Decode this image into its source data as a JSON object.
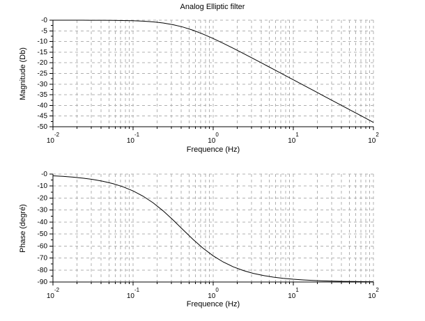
{
  "figure": {
    "title": "Analog Elliptic filter",
    "background": "#ffffff"
  },
  "style": {
    "grid_color": "#b0b0b0",
    "axis_color": "#000000",
    "text_color": "#000000",
    "curve_color": "#000000"
  },
  "chart_data": [
    {
      "id": "magnitude",
      "type": "line",
      "title": "Analog Elliptic filter",
      "xlabel": "Frequence (Hz)",
      "ylabel": "Magnitude (Db)",
      "xscale": "log",
      "xlim": [
        0.01,
        100
      ],
      "ylim": [
        -50,
        0
      ],
      "grid": true,
      "legend": null,
      "line_color": "#000000",
      "xtick_base": "10",
      "xtick_exponents": [
        "-2",
        "-1",
        "0",
        "1",
        "2"
      ],
      "ytick_values": [
        0,
        -5,
        -10,
        -15,
        -20,
        -25,
        -30,
        -35,
        -40,
        -45,
        -50
      ],
      "ytick_labels": [
        "-0",
        "-5",
        "-10",
        "-15",
        "-20",
        "-25",
        "-30",
        "-35",
        "-40",
        "-45",
        "-50"
      ],
      "x": [
        0.01,
        0.0133,
        0.0178,
        0.0237,
        0.0316,
        0.0422,
        0.0562,
        0.075,
        0.1,
        0.1334,
        0.1778,
        0.2371,
        0.3162,
        0.4217,
        0.5623,
        0.7499,
        1,
        1.3335,
        1.7783,
        2.3714,
        3.1623,
        4.217,
        5.6234,
        7.4989,
        10,
        13.3352,
        17.7828,
        23.7137,
        31.6228,
        42.1696,
        56.2341,
        74.9894,
        100
      ],
      "y": [
        -0.003,
        -0.005,
        -0.009,
        -0.015,
        -0.027,
        -0.048,
        -0.085,
        -0.15,
        -0.26,
        -0.46,
        -0.78,
        -1.31,
        -2.11,
        -3.25,
        -4.74,
        -6.55,
        -8.6,
        -10.83,
        -13.17,
        -15.58,
        -18.03,
        -20.5,
        -22.98,
        -25.47,
        -27.97,
        -30.46,
        -32.96,
        -35.46,
        -37.96,
        -40.46,
        -42.96,
        -45.46,
        -47.96
      ]
    },
    {
      "id": "phase",
      "type": "line",
      "title": "",
      "xlabel": "Frequence (Hz)",
      "ylabel": "Phase (degré)",
      "xscale": "log",
      "xlim": [
        0.01,
        100
      ],
      "ylim": [
        -90,
        0
      ],
      "grid": true,
      "legend": null,
      "line_color": "#000000",
      "xtick_base": "10",
      "xtick_exponents": [
        "-2",
        "-1",
        "0",
        "1",
        "2"
      ],
      "ytick_values": [
        0,
        -10,
        -20,
        -30,
        -40,
        -50,
        -60,
        -70,
        -80,
        -90
      ],
      "ytick_labels": [
        "-0",
        "-10",
        "-20",
        "-30",
        "-40",
        "-50",
        "-60",
        "-70",
        "-80",
        "-90"
      ],
      "x": [
        0.01,
        0.0133,
        0.0178,
        0.0237,
        0.0316,
        0.0422,
        0.0562,
        0.075,
        0.1,
        0.1334,
        0.1778,
        0.2371,
        0.3162,
        0.4217,
        0.5623,
        0.7499,
        1,
        1.3335,
        1.7783,
        2.3714,
        3.1623,
        4.217,
        5.6234,
        7.4989,
        10,
        13.3352,
        17.7828,
        23.7137,
        31.6228,
        42.1696,
        56.2341,
        74.9894,
        100
      ],
      "y": [
        -1.43,
        -1.91,
        -2.55,
        -3.39,
        -4.52,
        -6.02,
        -8,
        -10.62,
        -14.04,
        -18.44,
        -23.96,
        -30.66,
        -38.33,
        -46.51,
        -54.57,
        -61.92,
        -68.2,
        -73.3,
        -77.32,
        -80.43,
        -82.79,
        -84.58,
        -85.93,
        -86.95,
        -87.71,
        -88.28,
        -88.71,
        -89.03,
        -89.27,
        -89.46,
        -89.59,
        -89.69,
        -89.77
      ]
    }
  ]
}
